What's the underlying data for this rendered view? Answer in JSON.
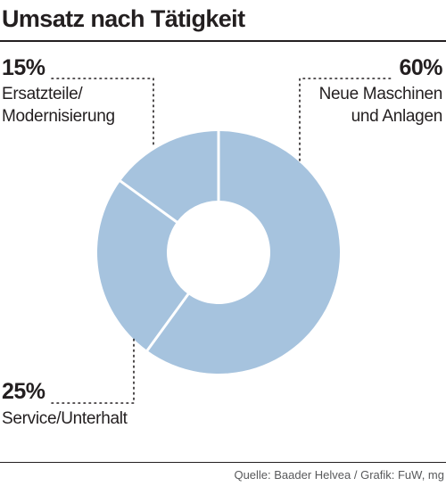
{
  "chart_data": {
    "type": "pie",
    "title": "Umsatz nach Tätigkeit",
    "unit": "%",
    "slices": [
      {
        "value": 60,
        "pct_label": "60%",
        "label_lines": [
          "Neue Maschinen",
          "und Anlagen"
        ]
      },
      {
        "value": 25,
        "pct_label": "25%",
        "label_lines": [
          "Service/Unterhalt"
        ]
      },
      {
        "value": 15,
        "pct_label": "15%",
        "label_lines": [
          "Ersatzteile/",
          "Modernisierung"
        ]
      }
    ],
    "colors": {
      "slice": "#a6c3de",
      "separator": "#ffffff",
      "leader": "#231f20"
    }
  },
  "source": "Quelle: Baader Helvea / Grafik: FuW, mg"
}
